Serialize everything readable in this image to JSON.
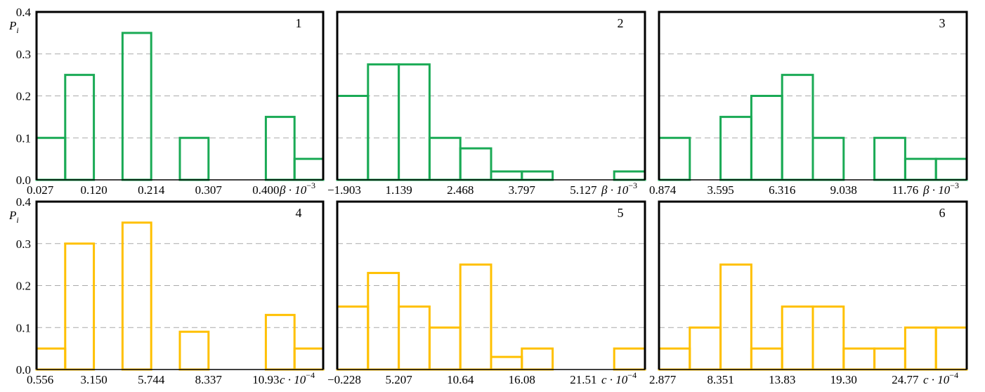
{
  "colors": {
    "green": "#1aaa55",
    "yellow": "#ffc000",
    "grid": "#aaaaaa",
    "frame": "#000000"
  },
  "chart_data": [
    {
      "type": "bar",
      "panel": "1",
      "color": "green",
      "y_label": "P",
      "y_label_sub": "i",
      "x_label": "β · 10",
      "x_label_exp": "−3",
      "x_ticks": [
        "0.027",
        "0.120",
        "0.214",
        "0.307",
        "0.400"
      ],
      "y_ticks": [
        "0.0",
        "0.1",
        "0.2",
        "0.3",
        "0.4"
      ],
      "ylim": [
        0,
        0.4
      ],
      "grid": true,
      "values": [
        0.1,
        0.25,
        0.0,
        0.35,
        0.0,
        0.1,
        0.0,
        0.0,
        0.15,
        0.05
      ]
    },
    {
      "type": "bar",
      "panel": "2",
      "color": "green",
      "y_label": "",
      "y_label_sub": "",
      "x_label": "β · 10",
      "x_label_exp": "−3",
      "x_ticks": [
        "−1.903",
        "1.139",
        "2.468",
        "3.797",
        "5.127"
      ],
      "y_ticks": [],
      "ylim": [
        0,
        0.4
      ],
      "grid": true,
      "values": [
        0.2,
        0.275,
        0.275,
        0.1,
        0.075,
        0.02,
        0.02,
        0.0,
        0.0,
        0.02
      ]
    },
    {
      "type": "bar",
      "panel": "3",
      "color": "green",
      "y_label": "",
      "y_label_sub": "",
      "x_label": "β · 10",
      "x_label_exp": "−3",
      "x_ticks": [
        "0.874",
        "3.595",
        "6.316",
        "9.038",
        "11.76"
      ],
      "y_ticks": [],
      "ylim": [
        0,
        0.4
      ],
      "grid": true,
      "values": [
        0.1,
        0.0,
        0.15,
        0.2,
        0.25,
        0.1,
        0.0,
        0.1,
        0.05,
        0.05
      ]
    },
    {
      "type": "bar",
      "panel": "4",
      "color": "yellow",
      "y_label": "P",
      "y_label_sub": "i",
      "x_label": "c · 10",
      "x_label_exp": "−4",
      "x_ticks": [
        "0.556",
        "3.150",
        "5.744",
        "8.337",
        "10.93"
      ],
      "y_ticks": [
        "0.0",
        "0.1",
        "0.2",
        "0.3",
        "0.4"
      ],
      "ylim": [
        0,
        0.4
      ],
      "grid": true,
      "values": [
        0.05,
        0.3,
        0.0,
        0.35,
        0.0,
        0.09,
        0.0,
        0.0,
        0.13,
        0.05
      ]
    },
    {
      "type": "bar",
      "panel": "5",
      "color": "yellow",
      "y_label": "",
      "y_label_sub": "",
      "x_label": "c · 10",
      "x_label_exp": "−4",
      "x_ticks": [
        "−0.228",
        "5.207",
        "10.64",
        "16.08",
        "21.51"
      ],
      "y_ticks": [],
      "ylim": [
        0,
        0.4
      ],
      "grid": true,
      "values": [
        0.15,
        0.23,
        0.15,
        0.1,
        0.25,
        0.03,
        0.05,
        0.0,
        0.0,
        0.05
      ]
    },
    {
      "type": "bar",
      "panel": "6",
      "color": "yellow",
      "y_label": "",
      "y_label_sub": "",
      "x_label": "c · 10",
      "x_label_exp": "−4",
      "x_ticks": [
        "2.877",
        "8.351",
        "13.83",
        "19.30",
        "24.77"
      ],
      "y_ticks": [],
      "ylim": [
        0,
        0.4
      ],
      "grid": true,
      "values": [
        0.05,
        0.1,
        0.25,
        0.05,
        0.15,
        0.15,
        0.05,
        0.05,
        0.1,
        0.1
      ]
    }
  ]
}
